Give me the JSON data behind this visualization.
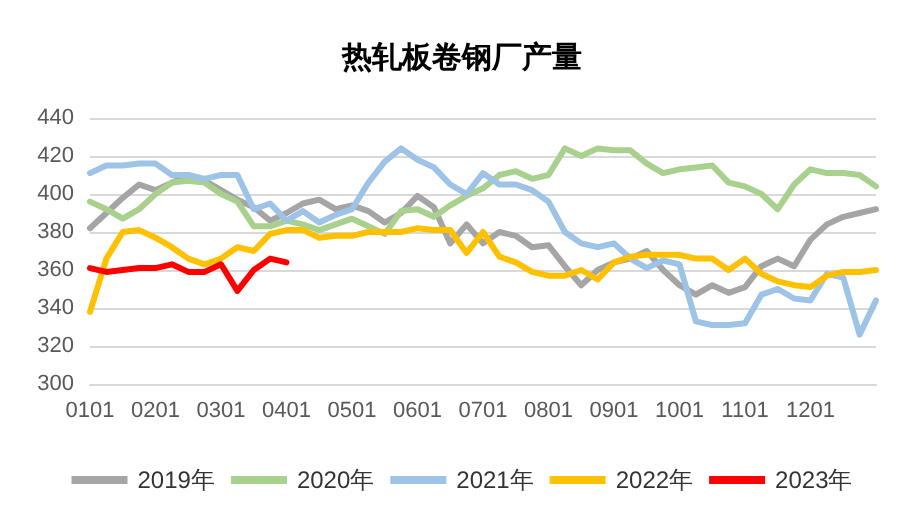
{
  "chart_data": {
    "type": "line",
    "title": "热轧板卷钢厂产量",
    "categories": [
      "0101",
      null,
      null,
      null,
      "0201",
      null,
      null,
      null,
      "0301",
      null,
      null,
      null,
      "0401",
      null,
      null,
      null,
      "0501",
      null,
      null,
      null,
      "0601",
      null,
      null,
      null,
      "0701",
      null,
      null,
      null,
      "0801",
      null,
      null,
      null,
      "0901",
      null,
      null,
      null,
      "1001",
      null,
      null,
      null,
      "1101",
      null,
      null,
      null,
      "1201",
      null,
      null,
      null,
      null
    ],
    "series": [
      {
        "name": "2019年",
        "color": "#a5a5a5",
        "values": [
          382,
          390,
          398,
          405,
          402,
          406,
          410,
          407,
          402,
          397,
          393,
          386,
          390,
          395,
          397,
          392,
          394,
          391,
          385,
          390,
          399,
          393,
          374,
          384,
          374,
          380,
          378,
          372,
          373,
          362,
          352,
          360,
          364,
          366,
          370,
          360,
          352,
          347,
          352,
          348,
          351,
          362,
          366,
          362,
          376,
          384,
          388,
          390,
          392
        ]
      },
      {
        "name": "2020年",
        "color": "#a9d18e",
        "values": [
          396,
          392,
          387,
          392,
          400,
          406,
          407,
          406,
          400,
          396,
          383,
          383,
          386,
          384,
          381,
          384,
          387,
          383,
          379,
          391,
          392,
          388,
          394,
          399,
          403,
          410,
          412,
          408,
          410,
          424,
          420,
          424,
          423,
          423,
          416,
          411,
          413,
          414,
          415,
          406,
          404,
          400,
          392,
          405,
          413,
          411,
          411,
          410,
          404
        ]
      },
      {
        "name": "2021年",
        "color": "#9dc3e6",
        "values": [
          411,
          415,
          415,
          416,
          416,
          410,
          410,
          408,
          410,
          410,
          392,
          395,
          386,
          391,
          385,
          389,
          392,
          406,
          417,
          424,
          418,
          414,
          405,
          400,
          411,
          405,
          405,
          402,
          396,
          380,
          374,
          372,
          374,
          366,
          361,
          365,
          363,
          333,
          331,
          331,
          332,
          347,
          350,
          345,
          344,
          358,
          356,
          326,
          344
        ]
      },
      {
        "name": "2022年",
        "color": "#ffc000",
        "values": [
          338,
          366,
          380,
          381,
          377,
          372,
          366,
          363,
          366,
          372,
          370,
          379,
          381,
          381,
          377,
          378,
          378,
          380,
          380,
          380,
          382,
          381,
          381,
          369,
          380,
          367,
          364,
          359,
          357,
          357,
          360,
          355,
          364,
          367,
          368,
          368,
          368,
          366,
          366,
          360,
          366,
          358,
          354,
          352,
          351,
          357,
          359,
          359,
          360
        ]
      },
      {
        "name": "2023年",
        "color": "#ff0000",
        "values": [
          361,
          359,
          360,
          361,
          361,
          363,
          359,
          359,
          363,
          349,
          360,
          366,
          364,
          null,
          null,
          null,
          null,
          null,
          null,
          null,
          null,
          null,
          null,
          null,
          null,
          null,
          null,
          null,
          null,
          null,
          null,
          null,
          null,
          null,
          null,
          null,
          null,
          null,
          null,
          null,
          null,
          null,
          null,
          null,
          null,
          null,
          null,
          null,
          null
        ]
      }
    ],
    "ylim": [
      300,
      440
    ],
    "yticks": [
      300,
      320,
      340,
      360,
      380,
      400,
      420,
      440
    ],
    "grid": "y",
    "legend": "bottom",
    "marker": "none",
    "line_style": "solid"
  }
}
